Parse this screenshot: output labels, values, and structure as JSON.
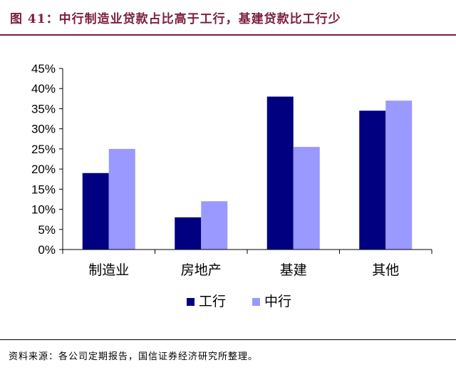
{
  "header": {
    "title": "图 41：中行制造业贷款占比高于工行，基建贷款比工行少"
  },
  "footer": {
    "source": "资料来源：各公司定期报告，国信证券经济研究所整理。"
  },
  "colors": {
    "title": "#7a1f3d",
    "series_icbc": "#000080",
    "series_boc": "#9999ff"
  },
  "chart_data": {
    "type": "bar",
    "categories": [
      "制造业",
      "房地产",
      "基建",
      "其他"
    ],
    "series": [
      {
        "name": "工行",
        "values": [
          19.0,
          8.0,
          38.0,
          34.5
        ]
      },
      {
        "name": "中行",
        "values": [
          25.0,
          12.0,
          25.5,
          37.0
        ]
      }
    ],
    "ylim": [
      0,
      45
    ],
    "yticks": [
      "0%",
      "5%",
      "10%",
      "15%",
      "20%",
      "25%",
      "30%",
      "35%",
      "40%",
      "45%"
    ],
    "legend_position": "bottom",
    "grid": false
  }
}
